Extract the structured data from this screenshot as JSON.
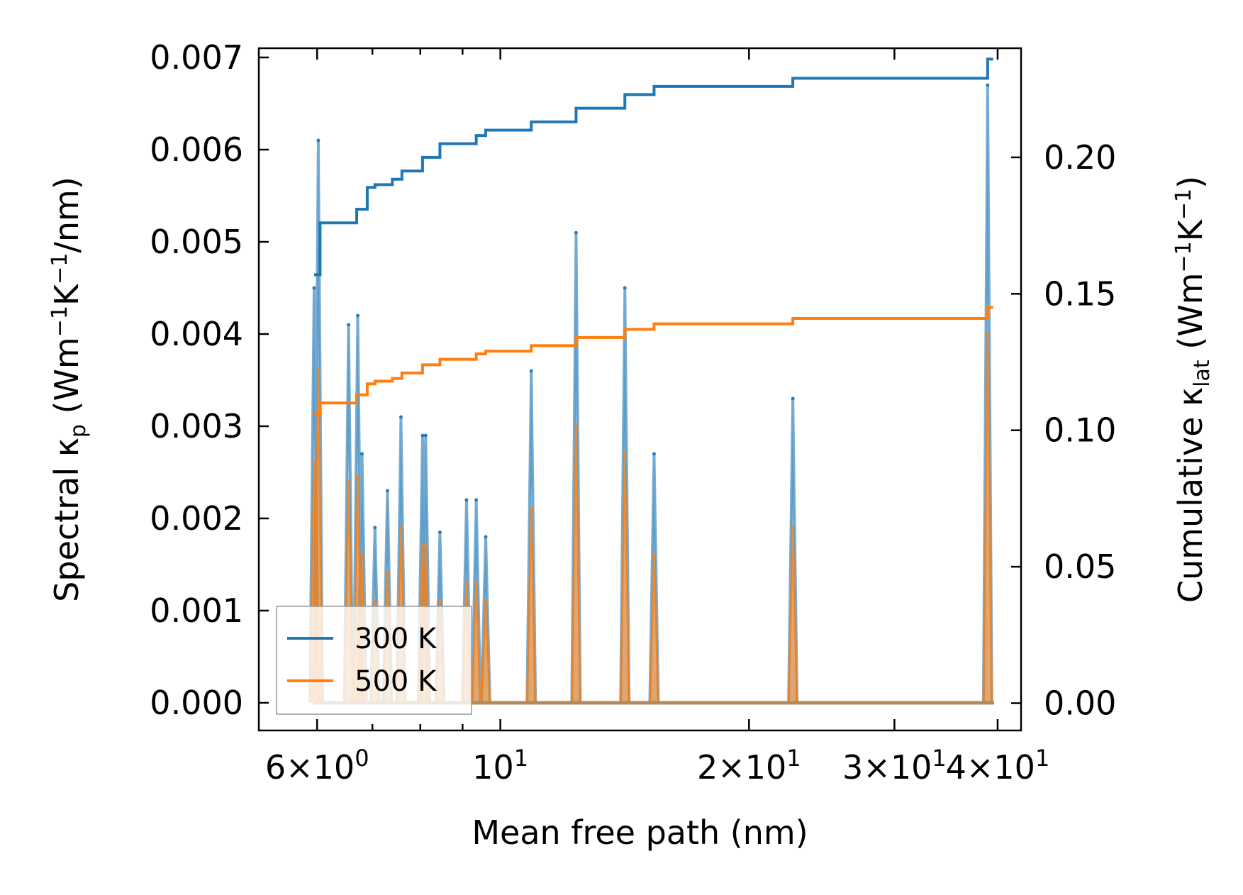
{
  "chart_data": {
    "type": "line",
    "xscale": "log",
    "xlabel": "Mean free path (nm)",
    "ylabel_left": {
      "main": "Spectral κ",
      "sub": "p",
      "units_pre": " (Wm",
      "exp1": "−1",
      "mid": "K",
      "exp2": "−1",
      "post": "/nm)"
    },
    "ylabel_right": {
      "main": "Cumulative κ",
      "sub": "lat",
      "units_pre": " (Wm",
      "exp1": "−1",
      "mid": "K",
      "exp2": "−1",
      "post": ")"
    },
    "xlim": [
      5.1,
      42.7
    ],
    "ylim_left": [
      -0.0003,
      0.0071
    ],
    "ylim_right": [
      -0.01,
      0.24
    ],
    "x_ticks_major": [
      {
        "value": 6,
        "mantissa": "6",
        "sep": "×",
        "base": "10",
        "exp": "0"
      },
      {
        "value": 10,
        "mantissa": "",
        "sep": "",
        "base": "10",
        "exp": "1"
      },
      {
        "value": 20,
        "mantissa": "2",
        "sep": "×",
        "base": "10",
        "exp": "1"
      },
      {
        "value": 30,
        "mantissa": "3",
        "sep": "×",
        "base": "10",
        "exp": "1"
      },
      {
        "value": 40,
        "mantissa": "4",
        "sep": "×",
        "base": "10",
        "exp": "1"
      }
    ],
    "x_ticks_minor": [
      7,
      8,
      9
    ],
    "y_ticks_left": [
      "0.000",
      "0.001",
      "0.002",
      "0.003",
      "0.004",
      "0.005",
      "0.006",
      "0.007"
    ],
    "y_ticks_right": [
      "0.00",
      "0.05",
      "0.10",
      "0.15",
      "0.20"
    ],
    "legend": {
      "position": "lower-left",
      "entries": [
        "300 K",
        "500 K"
      ]
    },
    "colors": {
      "s300": "#1f77b4",
      "s500": "#ff7f0e"
    },
    "peaks": [
      {
        "x": 5.95,
        "h300": 0.0045,
        "h500": 0.0026
      },
      {
        "x": 6.02,
        "h300": 0.0061,
        "h500": 0.0036
      },
      {
        "x": 6.55,
        "h300": 0.0041,
        "h500": 0.0024
      },
      {
        "x": 6.72,
        "h300": 0.0042,
        "h500": 0.00245
      },
      {
        "x": 6.8,
        "h300": 0.0027,
        "h500": 0.0016
      },
      {
        "x": 7.05,
        "h300": 0.0019,
        "h500": 0.0011
      },
      {
        "x": 7.3,
        "h300": 0.0023,
        "h500": 0.0014
      },
      {
        "x": 7.58,
        "h300": 0.0031,
        "h500": 0.0019
      },
      {
        "x": 8.05,
        "h300": 0.0029,
        "h500": 0.0017
      },
      {
        "x": 8.12,
        "h300": 0.0029,
        "h500": 0.0017
      },
      {
        "x": 8.45,
        "h300": 0.00185,
        "h500": 0.0011
      },
      {
        "x": 9.1,
        "h300": 0.0022,
        "h500": 0.0013
      },
      {
        "x": 9.35,
        "h300": 0.0022,
        "h500": 0.0013
      },
      {
        "x": 9.6,
        "h300": 0.0018,
        "h500": 0.0011
      },
      {
        "x": 10.9,
        "h300": 0.0036,
        "h500": 0.0021
      },
      {
        "x": 12.35,
        "h300": 0.0051,
        "h500": 0.003
      },
      {
        "x": 14.15,
        "h300": 0.0045,
        "h500": 0.0027
      },
      {
        "x": 15.35,
        "h300": 0.0027,
        "h500": 0.0016
      },
      {
        "x": 22.6,
        "h300": 0.0033,
        "h500": 0.0019
      },
      {
        "x": 38.9,
        "h300": 0.0067,
        "h500": 0.004
      }
    ],
    "cumulative": {
      "300 K": [
        [
          5.95,
          0.157
        ],
        [
          6.05,
          0.176
        ],
        [
          6.55,
          0.176
        ],
        [
          6.7,
          0.181
        ],
        [
          6.9,
          0.189
        ],
        [
          7.05,
          0.19
        ],
        [
          7.4,
          0.192
        ],
        [
          7.6,
          0.195
        ],
        [
          8.05,
          0.2
        ],
        [
          8.45,
          0.205
        ],
        [
          9.1,
          0.205
        ],
        [
          9.35,
          0.208
        ],
        [
          9.6,
          0.21
        ],
        [
          10.9,
          0.213
        ],
        [
          12.35,
          0.218
        ],
        [
          14.15,
          0.223
        ],
        [
          15.35,
          0.226
        ],
        [
          22.6,
          0.229
        ],
        [
          38.9,
          0.236
        ],
        [
          39.5,
          0.236
        ]
      ],
      "500 K": [
        [
          5.95,
          0.106
        ],
        [
          6.05,
          0.11
        ],
        [
          6.55,
          0.11
        ],
        [
          6.7,
          0.113
        ],
        [
          6.9,
          0.117
        ],
        [
          7.05,
          0.118
        ],
        [
          7.4,
          0.119
        ],
        [
          7.6,
          0.121
        ],
        [
          8.05,
          0.124
        ],
        [
          8.45,
          0.126
        ],
        [
          9.1,
          0.126
        ],
        [
          9.35,
          0.128
        ],
        [
          9.6,
          0.129
        ],
        [
          10.9,
          0.131
        ],
        [
          12.35,
          0.134
        ],
        [
          14.15,
          0.137
        ],
        [
          15.35,
          0.139
        ],
        [
          22.6,
          0.141
        ],
        [
          38.9,
          0.145
        ],
        [
          39.5,
          0.145
        ]
      ]
    }
  }
}
